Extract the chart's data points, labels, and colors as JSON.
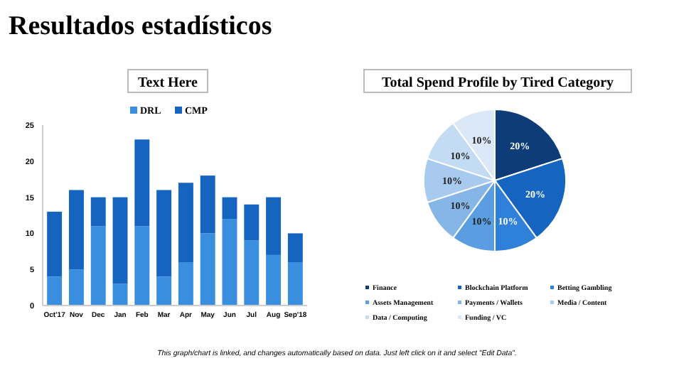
{
  "chart_data": [
    {
      "type": "bar",
      "title": "Text Here",
      "annotations": [
        "Resultados estadísticos"
      ],
      "categories": [
        "Oct'17",
        "Nov",
        "Dec",
        "Jan",
        "Feb",
        "Mar",
        "Apr",
        "May",
        "Jun",
        "Jul",
        "Aug",
        "Sep'18"
      ],
      "stacked": true,
      "series": [
        {
          "name": "DRL",
          "color": "#3a8ee0",
          "values": [
            4,
            5,
            11,
            3,
            11,
            4,
            6,
            10,
            12,
            9,
            7,
            6
          ]
        },
        {
          "name": "CMP",
          "color": "#1565c0",
          "values": [
            9,
            11,
            4,
            12,
            12,
            12,
            11,
            8,
            3,
            5,
            8,
            4
          ]
        }
      ],
      "ylim": [
        0,
        25
      ],
      "yticks": [
        0,
        5,
        10,
        15,
        20,
        25
      ],
      "grid": false,
      "legend": "top"
    },
    {
      "type": "pie",
      "title": "Total Spend Profile by Tired Category",
      "categories": [
        "Finance",
        "Blockchain Platform",
        "Betting Gambling",
        "Assets Management",
        "Payments / Wallets",
        "Media / Content",
        "Data / Computing",
        "Funding / VC"
      ],
      "values": [
        20,
        20,
        10,
        10,
        10,
        10,
        10,
        10
      ],
      "colors": [
        "#0d3c78",
        "#1565c0",
        "#2f80d8",
        "#5a9de0",
        "#86b6e8",
        "#a8caee",
        "#c3dbf3",
        "#dbe8f7"
      ],
      "value_labels": [
        "20%",
        "20%",
        "10%",
        "10%",
        "10%",
        "10%",
        "10%",
        "10%"
      ],
      "legend": "bottom",
      "annotations": [
        "This graph/chart is linked, and changes automatically based on data. Just left click on it and select \"Edit Data\"."
      ]
    }
  ]
}
